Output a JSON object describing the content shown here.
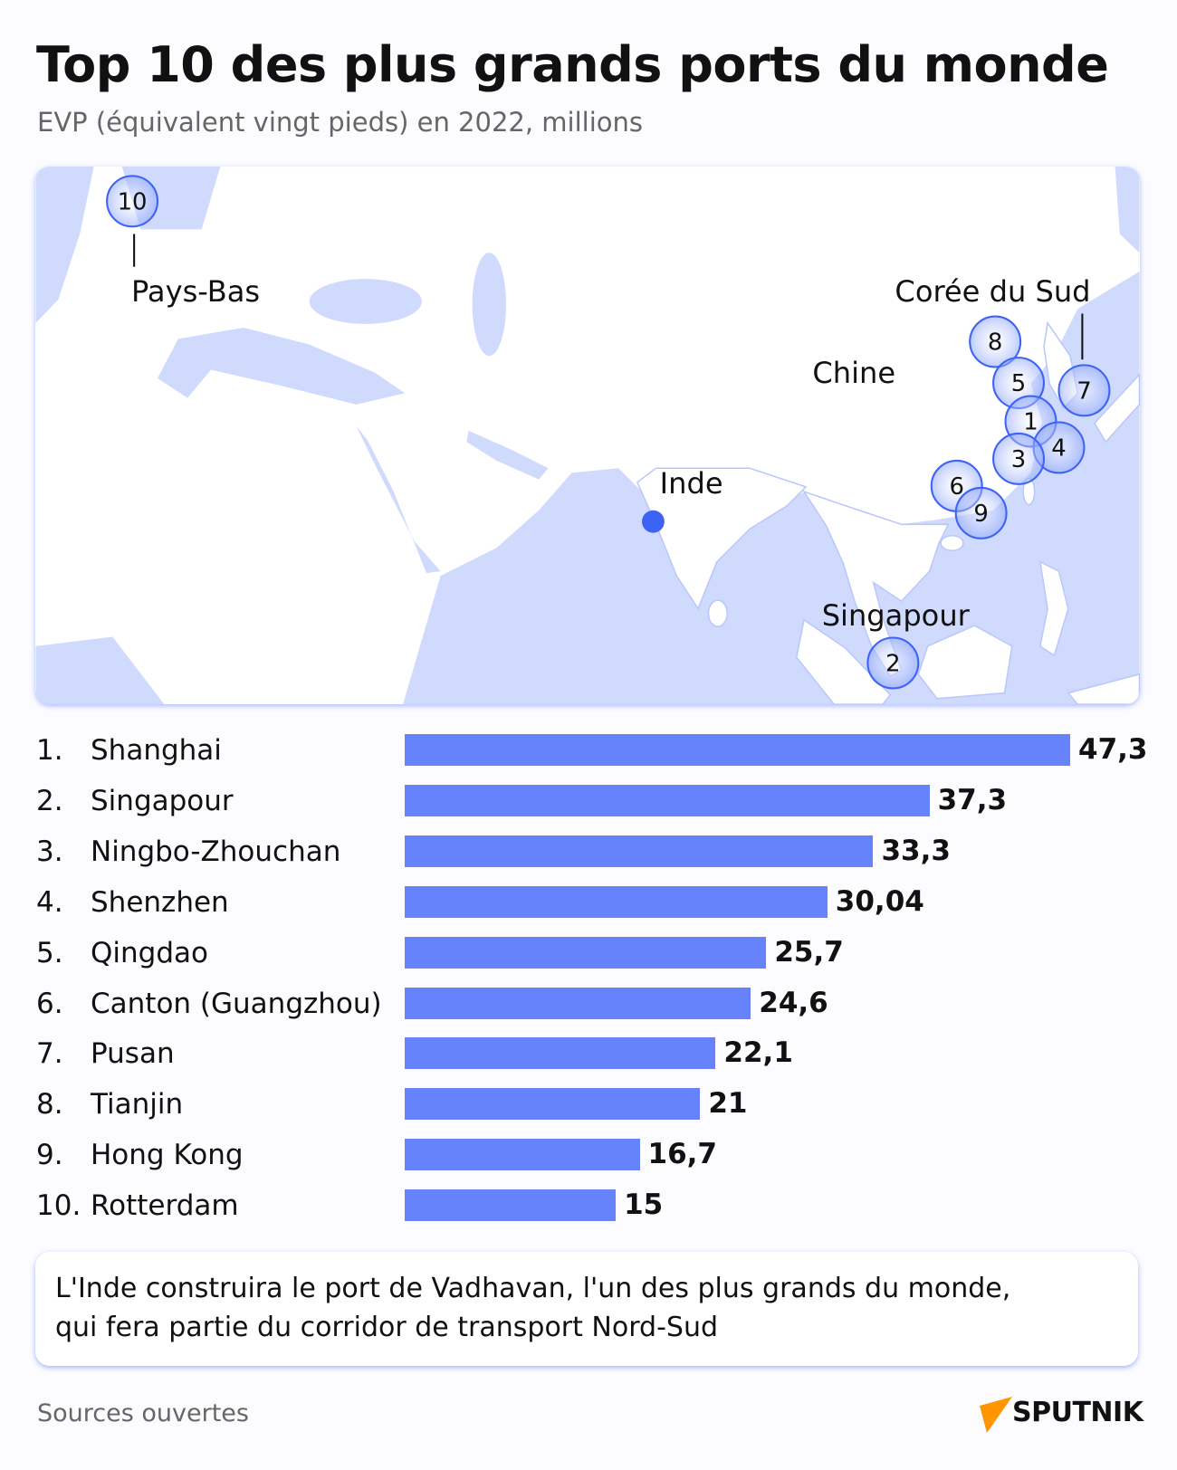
{
  "title": "Top 10 des plus grands ports du monde",
  "subtitle": "EVP (équivalent vingt pieds) en 2022, millions",
  "colors": {
    "bar": "#6683fc",
    "sea": "#cfdafd",
    "circle_stroke": "#3d63f5",
    "india_dot": "#3d63f5",
    "logo_orange": "#ff9600"
  },
  "map": {
    "labels": {
      "netherlands": "Pays-Bas",
      "china": "Chine",
      "korea": "Corée du Sud",
      "india": "Inde",
      "singapore": "Singapour"
    },
    "markers": [
      "1",
      "2",
      "3",
      "4",
      "5",
      "6",
      "7",
      "8",
      "9",
      "10"
    ]
  },
  "chart_data": {
    "type": "bar",
    "orientation": "horizontal",
    "title": "Top 10 des plus grands ports du monde",
    "subtitle": "EVP (équivalent vingt pieds) en 2022, millions",
    "ranks": [
      "1.",
      "2.",
      "3.",
      "4.",
      "5.",
      "6.",
      "7.",
      "8.",
      "9.",
      "10."
    ],
    "categories": [
      "Shanghai",
      "Singapour",
      "Ningbo-Zhouchan",
      "Shenzhen",
      "Qingdao",
      "Canton (Guangzhou)",
      "Pusan",
      "Tianjin",
      "Hong Kong",
      "Rotterdam"
    ],
    "values": [
      47.3,
      37.3,
      33.3,
      30.04,
      25.7,
      24.6,
      22.1,
      21,
      16.7,
      15
    ],
    "value_labels": [
      "47,3",
      "37,3",
      "33,3",
      "30,04",
      "25,7",
      "24,6",
      "22,1",
      "21",
      "16,7",
      "15"
    ],
    "grid": false
  },
  "note": {
    "line1": "L'Inde construira le port de Vadhavan, l'un des plus grands du monde,",
    "line2": "qui fera partie du corridor de transport Nord-Sud"
  },
  "source": "Sources ouvertes",
  "logo": "SPUTNIK"
}
